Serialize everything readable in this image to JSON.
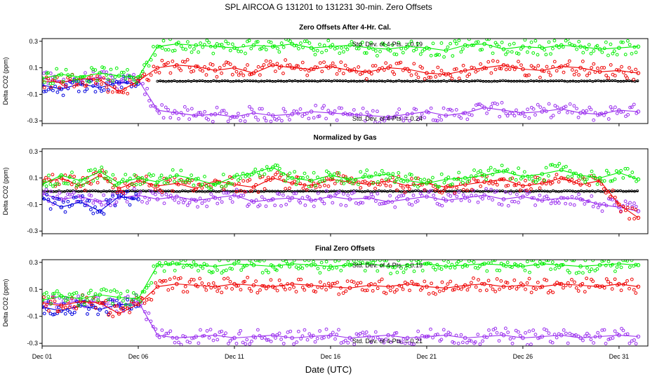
{
  "figure": {
    "title": "SPL   AIRCOA G   131201 to 131231   30-min. Zero Offsets",
    "xlabel": "Date (UTC)"
  },
  "colors": {
    "green": "#00ee00",
    "red": "#ee0000",
    "blue": "#0000dd",
    "purple": "#9a2eee",
    "black": "#000000"
  },
  "chart_data": [
    {
      "type": "scatter",
      "title": "Zero Offsets After 4-Hr. Cal.",
      "ylabel": "Delta CO2 (ppm)",
      "xlabel": "Date (UTC)",
      "xlim": [
        1,
        32.5
      ],
      "ylim": [
        -0.32,
        0.32
      ],
      "xticks": [
        1,
        6,
        11,
        16,
        21,
        26,
        31
      ],
      "xtick_labels": [
        "Dec 01",
        "Dec 06",
        "Dec 11",
        "Dec 16",
        "Dec 21",
        "Dec 26",
        "Dec 31"
      ],
      "yticks": [
        0.3,
        0.1,
        -0.1,
        -0.3
      ],
      "ytick_labels": [
        "0.3",
        "0.1",
        "-0.1",
        "-0.3"
      ],
      "annotations": [
        "Std. Dev. of 4-Pts. = 0.19",
        "Std. Dev. of 4-Pts. = 0.24"
      ],
      "series": [
        {
          "name": "green",
          "color": "green",
          "x": [
            1,
            2,
            3,
            4,
            5,
            6,
            7,
            8,
            9,
            10,
            11,
            12,
            13,
            14,
            15,
            16,
            17,
            18,
            19,
            20,
            21,
            22,
            23,
            24,
            25,
            26,
            27,
            28,
            29,
            30,
            31,
            32
          ],
          "y": [
            0.02,
            0.05,
            0.03,
            0.06,
            0.04,
            0.03,
            0.26,
            0.28,
            0.27,
            0.26,
            0.25,
            0.27,
            0.26,
            0.28,
            0.25,
            0.26,
            0.27,
            0.25,
            0.24,
            0.26,
            0.25,
            0.23,
            0.27,
            0.28,
            0.24,
            0.26,
            0.25,
            0.27,
            0.26,
            0.24,
            0.25,
            0.26
          ]
        },
        {
          "name": "red",
          "color": "red",
          "x": [
            1,
            2,
            3,
            4,
            5,
            6,
            7,
            8,
            9,
            10,
            11,
            12,
            13,
            14,
            15,
            16,
            17,
            18,
            19,
            20,
            21,
            22,
            23,
            24,
            25,
            26,
            27,
            28,
            29,
            30,
            31,
            32
          ],
          "y": [
            0.0,
            -0.01,
            0.02,
            0.01,
            -0.08,
            0.0,
            0.1,
            0.12,
            0.11,
            0.08,
            0.1,
            0.06,
            0.12,
            0.1,
            0.09,
            0.11,
            0.08,
            0.07,
            0.1,
            0.09,
            0.06,
            0.05,
            0.08,
            0.1,
            0.12,
            0.09,
            0.08,
            0.11,
            0.1,
            0.07,
            0.08,
            0.06
          ]
        },
        {
          "name": "blue",
          "color": "blue",
          "x": [
            1,
            2,
            3,
            4,
            5,
            6
          ],
          "y": [
            -0.03,
            -0.06,
            -0.02,
            -0.05,
            -0.01,
            -0.02
          ]
        },
        {
          "name": "purple",
          "color": "purple",
          "x": [
            1,
            2,
            3,
            4,
            5,
            6,
            7,
            8,
            9,
            10,
            11,
            12,
            13,
            14,
            15,
            16,
            17,
            18,
            19,
            20,
            21,
            22,
            23,
            24,
            25,
            26,
            27,
            28,
            29,
            30,
            31,
            32
          ],
          "y": [
            0.02,
            -0.01,
            0.01,
            0.03,
            -0.02,
            0.01,
            -0.22,
            -0.24,
            -0.26,
            -0.25,
            -0.27,
            -0.24,
            -0.26,
            -0.25,
            -0.23,
            -0.24,
            -0.25,
            -0.26,
            -0.27,
            -0.25,
            -0.23,
            -0.26,
            -0.24,
            -0.2,
            -0.22,
            -0.24,
            -0.23,
            -0.21,
            -0.24,
            -0.25,
            -0.22,
            -0.23
          ]
        },
        {
          "name": "black",
          "color": "black",
          "x": [
            7,
            32
          ],
          "y": [
            0.0,
            0.0
          ]
        }
      ]
    },
    {
      "type": "scatter",
      "title": "Normalized by Gas",
      "ylabel": "Delta CO2 (ppm)",
      "xlabel": "Date (UTC)",
      "xlim": [
        1,
        32.5
      ],
      "ylim": [
        -0.32,
        0.32
      ],
      "xticks": [
        1,
        6,
        11,
        16,
        21,
        26,
        31
      ],
      "xtick_labels": [
        "Dec 01",
        "Dec 06",
        "Dec 11",
        "Dec 16",
        "Dec 21",
        "Dec 26",
        "Dec 31"
      ],
      "yticks": [
        0.3,
        0.1,
        -0.1,
        -0.3
      ],
      "ytick_labels": [
        "0.3",
        "0.1",
        "-0.1",
        "-0.3"
      ],
      "annotations": [],
      "series": [
        {
          "name": "green",
          "color": "green",
          "x": [
            1,
            2,
            3,
            4,
            5,
            6,
            7,
            8,
            9,
            10,
            11,
            12,
            13,
            14,
            15,
            16,
            17,
            18,
            19,
            20,
            21,
            22,
            23,
            24,
            25,
            26,
            27,
            28,
            29,
            30,
            31,
            32
          ],
          "y": [
            0.05,
            0.12,
            0.08,
            0.15,
            0.06,
            0.1,
            0.07,
            0.12,
            0.09,
            0.05,
            0.11,
            0.14,
            0.18,
            0.1,
            0.08,
            0.12,
            0.09,
            0.11,
            0.13,
            0.08,
            0.06,
            0.09,
            0.1,
            0.12,
            0.15,
            0.11,
            0.13,
            0.16,
            0.12,
            0.1,
            0.14,
            0.09
          ]
        },
        {
          "name": "red",
          "color": "red",
          "x": [
            1,
            2,
            3,
            4,
            5,
            6,
            7,
            8,
            9,
            10,
            11,
            12,
            13,
            14,
            15,
            16,
            17,
            18,
            19,
            20,
            21,
            22,
            23,
            24,
            25,
            26,
            27,
            28,
            29,
            30,
            31,
            32
          ],
          "y": [
            0.06,
            0.1,
            0.04,
            0.12,
            0.02,
            0.08,
            0.04,
            0.06,
            0.02,
            0.08,
            0.05,
            0.03,
            0.1,
            0.06,
            0.04,
            0.09,
            0.07,
            0.05,
            0.08,
            0.04,
            0.06,
            0.03,
            0.05,
            0.07,
            0.09,
            0.04,
            0.06,
            0.1,
            0.05,
            0.08,
            -0.1,
            -0.2
          ]
        },
        {
          "name": "blue",
          "color": "blue",
          "x": [
            1,
            2,
            3,
            4,
            5,
            6
          ],
          "y": [
            -0.05,
            -0.12,
            -0.08,
            -0.15,
            -0.04,
            -0.06
          ]
        },
        {
          "name": "purple",
          "color": "purple",
          "x": [
            1,
            2,
            3,
            4,
            5,
            6,
            7,
            8,
            9,
            10,
            11,
            12,
            13,
            14,
            15,
            16,
            17,
            18,
            19,
            20,
            21,
            22,
            23,
            24,
            25,
            26,
            27,
            28,
            29,
            30,
            31,
            32
          ],
          "y": [
            -0.02,
            -0.06,
            -0.04,
            -0.08,
            -0.05,
            -0.03,
            -0.06,
            -0.04,
            -0.07,
            -0.05,
            -0.03,
            -0.08,
            -0.06,
            -0.05,
            -0.07,
            -0.04,
            -0.06,
            -0.05,
            -0.08,
            -0.06,
            -0.04,
            -0.07,
            -0.05,
            -0.03,
            -0.06,
            -0.04,
            -0.07,
            -0.05,
            -0.06,
            -0.1,
            -0.12,
            -0.15
          ]
        },
        {
          "name": "black",
          "color": "black",
          "x": [
            1,
            32
          ],
          "y": [
            0.0,
            0.0
          ]
        }
      ]
    },
    {
      "type": "scatter",
      "title": "Final Zero Offsets",
      "ylabel": "Delta CO2 (ppm)",
      "xlabel": "Date (UTC)",
      "xlim": [
        1,
        32.5
      ],
      "ylim": [
        -0.32,
        0.32
      ],
      "xticks": [
        1,
        6,
        11,
        16,
        21,
        26,
        31
      ],
      "xtick_labels": [
        "Dec 01",
        "Dec 06",
        "Dec 11",
        "Dec 16",
        "Dec 21",
        "Dec 26",
        "Dec 31"
      ],
      "yticks": [
        0.3,
        0.1,
        -0.1,
        -0.3
      ],
      "ytick_labels": [
        "0.3",
        "0.1",
        "-0.1",
        "-0.3"
      ],
      "annotations": [
        "Std. Dev. of 4-Pts. = 0.19",
        "Std. Dev. of 4-Pts. = 0.21"
      ],
      "series": [
        {
          "name": "green",
          "color": "green",
          "x": [
            1,
            2,
            3,
            4,
            5,
            6,
            7,
            8,
            9,
            10,
            11,
            12,
            13,
            14,
            15,
            16,
            17,
            18,
            19,
            20,
            21,
            22,
            23,
            24,
            25,
            26,
            27,
            28,
            29,
            30,
            31,
            32
          ],
          "y": [
            0.02,
            0.05,
            0.03,
            0.06,
            0.04,
            0.03,
            0.28,
            0.29,
            0.28,
            0.27,
            0.29,
            0.28,
            0.27,
            0.29,
            0.28,
            0.27,
            0.28,
            0.29,
            0.27,
            0.28,
            0.29,
            0.27,
            0.28,
            0.29,
            0.28,
            0.27,
            0.29,
            0.28,
            0.27,
            0.28,
            0.29,
            0.28
          ]
        },
        {
          "name": "red",
          "color": "red",
          "x": [
            1,
            2,
            3,
            4,
            5,
            6,
            7,
            8,
            9,
            10,
            11,
            12,
            13,
            14,
            15,
            16,
            17,
            18,
            19,
            20,
            21,
            22,
            23,
            24,
            25,
            26,
            27,
            28,
            29,
            30,
            31,
            32
          ],
          "y": [
            0.0,
            -0.02,
            0.01,
            0.0,
            -0.08,
            -0.01,
            0.12,
            0.14,
            0.13,
            0.12,
            0.14,
            0.13,
            0.12,
            0.14,
            0.13,
            0.12,
            0.11,
            0.13,
            0.12,
            0.14,
            0.12,
            0.11,
            0.13,
            0.14,
            0.12,
            0.13,
            0.12,
            0.14,
            0.13,
            0.12,
            0.14,
            0.12
          ]
        },
        {
          "name": "blue",
          "color": "blue",
          "x": [
            1,
            2,
            3,
            4,
            5,
            6
          ],
          "y": [
            -0.03,
            -0.06,
            -0.02,
            -0.05,
            -0.01,
            -0.02
          ]
        },
        {
          "name": "purple",
          "color": "purple",
          "x": [
            1,
            2,
            3,
            4,
            5,
            6,
            7,
            8,
            9,
            10,
            11,
            12,
            13,
            14,
            15,
            16,
            17,
            18,
            19,
            20,
            21,
            22,
            23,
            24,
            25,
            26,
            27,
            28,
            29,
            30,
            31,
            32
          ],
          "y": [
            0.01,
            -0.01,
            0.02,
            0.0,
            -0.02,
            0.01,
            -0.24,
            -0.26,
            -0.25,
            -0.24,
            -0.26,
            -0.25,
            -0.24,
            -0.26,
            -0.25,
            -0.24,
            -0.26,
            -0.25,
            -0.24,
            -0.26,
            -0.25,
            -0.24,
            -0.26,
            -0.25,
            -0.24,
            -0.26,
            -0.25,
            -0.24,
            -0.26,
            -0.25,
            -0.24,
            -0.25
          ]
        }
      ]
    }
  ]
}
